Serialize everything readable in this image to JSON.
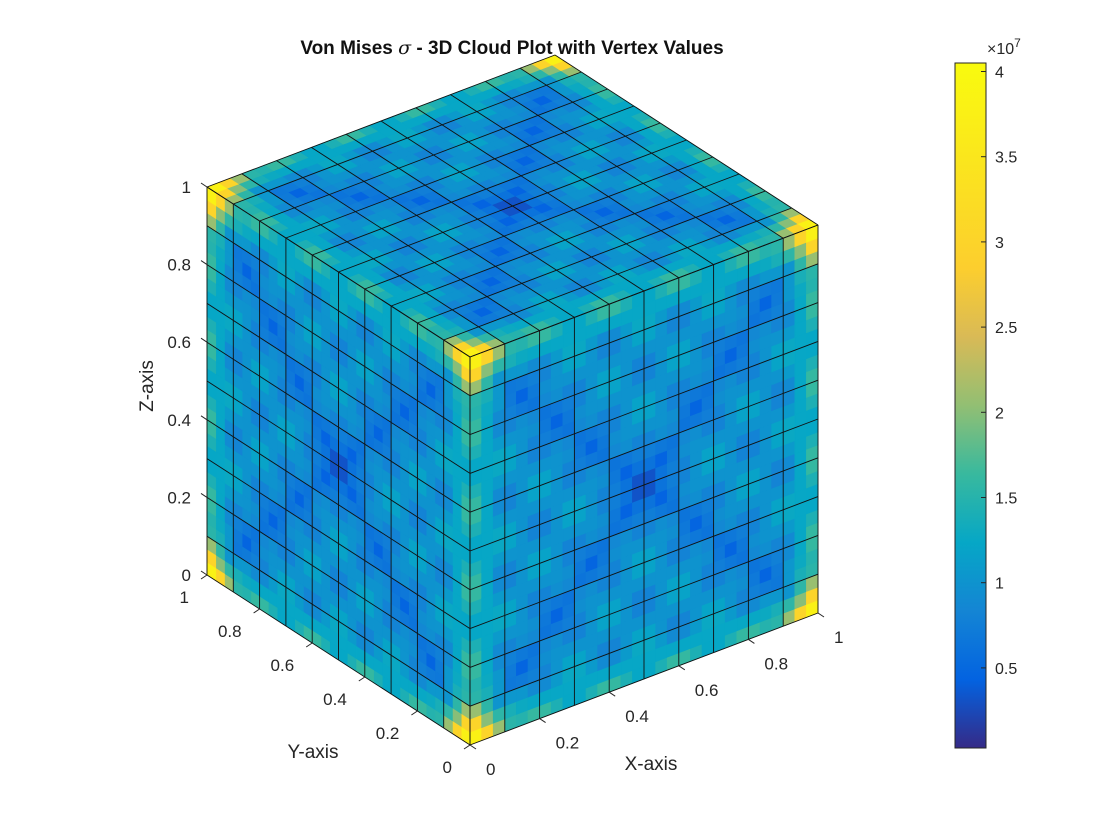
{
  "chart_data": {
    "type": "surface-3d",
    "title_prefix": "Von Mises ",
    "title_symbol": "σ",
    "title_suffix": " - 3D Cloud Plot with Vertex Values",
    "xlabel": "X-axis",
    "ylabel": "Y-axis",
    "zlabel": "Z-axis",
    "xlim": [
      0,
      1
    ],
    "ylim": [
      0,
      1
    ],
    "zlim": [
      0,
      1
    ],
    "grid_divisions": 10,
    "x_ticks": [
      "0",
      "0.2",
      "0.4",
      "0.6",
      "0.8",
      "1"
    ],
    "y_ticks": [
      "0",
      "0.2",
      "0.4",
      "0.6",
      "0.8",
      "1"
    ],
    "z_ticks": [
      "0",
      "0.2",
      "0.4",
      "0.6",
      "0.8",
      "1"
    ],
    "colormap": "parula",
    "colorbar": {
      "range": [
        0.03,
        4.05
      ],
      "ticks": [
        "0.5",
        "1",
        "1.5",
        "2",
        "2.5",
        "3",
        "3.5",
        "4"
      ],
      "tick_values": [
        0.5,
        1,
        1.5,
        2,
        2.5,
        3,
        3.5,
        4
      ],
      "exponent_base": "×10",
      "exponent_power": "7",
      "placement": "right"
    },
    "visible_faces": [
      "top (z=1)",
      "front-left (y=0)",
      "front-right (x=1)"
    ],
    "corner_peak_value": 4.0,
    "typical_face_value": 1.0,
    "minimum_value": 0.05
  }
}
